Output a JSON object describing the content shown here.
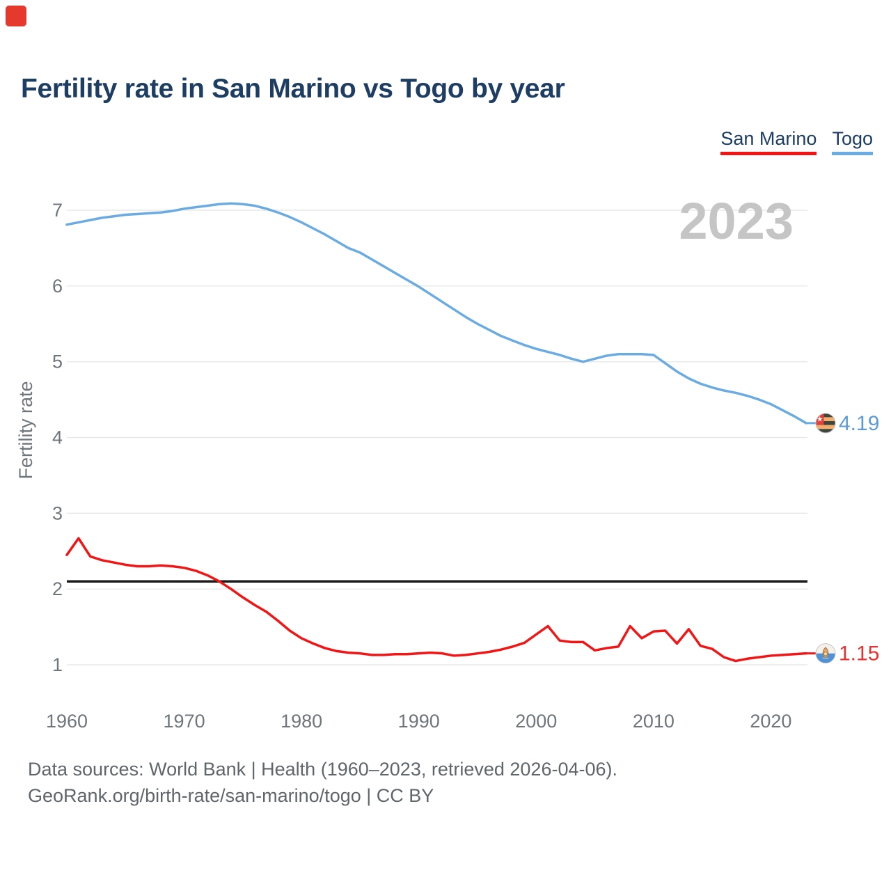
{
  "header": {
    "title": "Fertility rate in San Marino vs Togo by year"
  },
  "legend": {
    "san_marino": "San Marino",
    "togo": "Togo"
  },
  "watermark": "2023",
  "footer": {
    "line1": "Data sources: World Bank | Health (1960–2023, retrieved 2026-04-06).",
    "line2": "GeoRank.org/birth-rate/san-marino/togo | CC BY"
  },
  "colors": {
    "title_navy": "#1d3d63",
    "axis_gray": "#6e767c",
    "gridline": "#e8e8e8",
    "watermark_gray": "#c5c5c5",
    "reference_black": "#1a1a1a",
    "san_marino_red": "#f21515",
    "togo_blue": "#6aabe2"
  },
  "chart_data": {
    "type": "line",
    "title": "Fertility rate in San Marino vs Togo by year",
    "xlabel": "",
    "ylabel": "Fertility rate",
    "xlim": [
      1960,
      2023
    ],
    "ylim": [
      0.6,
      7.5
    ],
    "yticks": [
      1,
      2,
      3,
      4,
      5,
      6,
      7
    ],
    "xticks": [
      1960,
      1970,
      1980,
      1990,
      2000,
      2010,
      2020
    ],
    "grid": true,
    "legend_position": "top-right",
    "watermark_year": "2023",
    "reference_line": {
      "value": 2.1,
      "color": "#1a1a1a"
    },
    "x": [
      1960,
      1961,
      1962,
      1963,
      1964,
      1965,
      1966,
      1967,
      1968,
      1969,
      1970,
      1971,
      1972,
      1973,
      1974,
      1975,
      1976,
      1977,
      1978,
      1979,
      1980,
      1981,
      1982,
      1983,
      1984,
      1985,
      1986,
      1987,
      1988,
      1989,
      1990,
      1991,
      1992,
      1993,
      1994,
      1995,
      1996,
      1997,
      1998,
      1999,
      2000,
      2001,
      2002,
      2003,
      2004,
      2005,
      2006,
      2007,
      2008,
      2009,
      2010,
      2011,
      2012,
      2013,
      2014,
      2015,
      2016,
      2017,
      2018,
      2019,
      2020,
      2021,
      2022,
      2023
    ],
    "series": [
      {
        "name": "San Marino",
        "color": "#f21515",
        "label_color": "#e8312f",
        "end_label": "1.15",
        "end_value": 1.15,
        "values": [
          2.45,
          2.67,
          2.43,
          2.38,
          2.35,
          2.32,
          2.3,
          2.3,
          2.31,
          2.3,
          2.28,
          2.24,
          2.18,
          2.1,
          2.0,
          1.89,
          1.79,
          1.7,
          1.58,
          1.45,
          1.35,
          1.28,
          1.22,
          1.18,
          1.16,
          1.15,
          1.13,
          1.13,
          1.14,
          1.14,
          1.15,
          1.16,
          1.15,
          1.12,
          1.13,
          1.15,
          1.17,
          1.2,
          1.24,
          1.29,
          1.4,
          1.51,
          1.32,
          1.3,
          1.3,
          1.19,
          1.22,
          1.24,
          1.51,
          1.35,
          1.44,
          1.45,
          1.28,
          1.47,
          1.25,
          1.21,
          1.1,
          1.05,
          1.08,
          1.1,
          1.12,
          1.13,
          1.14,
          1.15
        ]
      },
      {
        "name": "Togo",
        "color": "#6aabe2",
        "label_color": "#5b9bd5",
        "end_label": "4.19",
        "end_value": 4.19,
        "values": [
          6.81,
          6.84,
          6.87,
          6.9,
          6.92,
          6.94,
          6.95,
          6.96,
          6.97,
          6.99,
          7.02,
          7.04,
          7.06,
          7.08,
          7.09,
          7.08,
          7.06,
          7.02,
          6.97,
          6.91,
          6.84,
          6.76,
          6.68,
          6.59,
          6.5,
          6.44,
          6.35,
          6.26,
          6.17,
          6.08,
          5.99,
          5.89,
          5.79,
          5.69,
          5.59,
          5.5,
          5.42,
          5.34,
          5.28,
          5.22,
          5.17,
          5.13,
          5.09,
          5.04,
          5.0,
          5.04,
          5.08,
          5.1,
          5.1,
          5.1,
          5.09,
          4.98,
          4.87,
          4.78,
          4.71,
          4.66,
          4.62,
          4.59,
          4.55,
          4.5,
          4.44,
          4.36,
          4.28,
          4.19
        ]
      }
    ]
  }
}
